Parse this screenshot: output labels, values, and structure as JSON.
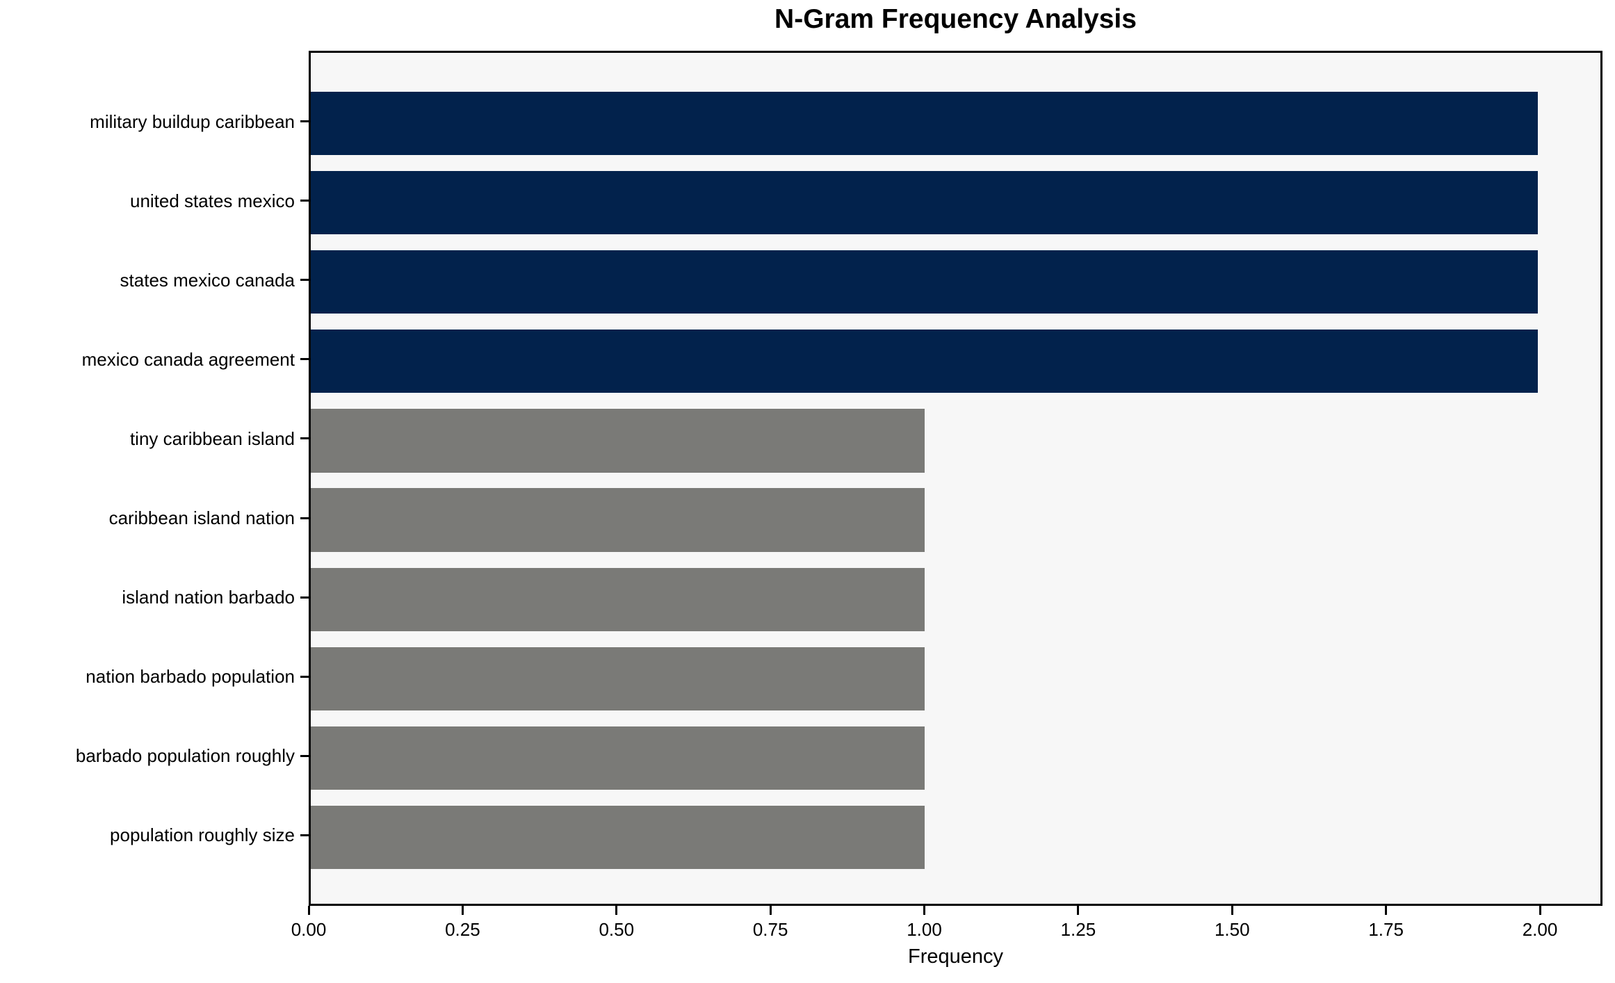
{
  "chart_data": {
    "type": "bar",
    "orientation": "horizontal",
    "title": "N-Gram Frequency Analysis",
    "xlabel": "Frequency",
    "ylabel": "",
    "categories": [
      "military buildup caribbean",
      "united states mexico",
      "states mexico canada",
      "mexico canada agreement",
      "tiny caribbean island",
      "caribbean island nation",
      "island nation barbado",
      "nation barbado population",
      "barbado population roughly",
      "population roughly size"
    ],
    "values": [
      2,
      2,
      2,
      2,
      1,
      1,
      1,
      1,
      1,
      1
    ],
    "bar_colors": [
      "#02224c",
      "#02224c",
      "#02224c",
      "#02224c",
      "#7a7a77",
      "#7a7a77",
      "#7a7a77",
      "#7a7a77",
      "#7a7a77",
      "#7a7a77"
    ],
    "xlim": [
      0,
      2.1016
    ],
    "xticks": [
      0,
      0.25,
      0.5,
      0.75,
      1.0,
      1.25,
      1.5,
      1.75,
      2.0
    ],
    "xtick_labels": [
      "0.00",
      "0.25",
      "0.50",
      "0.75",
      "1.00",
      "1.25",
      "1.50",
      "1.75",
      "2.00"
    ],
    "grid": false,
    "legend": "none",
    "plot_background": "#f7f7f7",
    "figure_background": "#ffffff",
    "colors": {
      "high_frequency_bar": "#02224c",
      "low_frequency_bar": "#7a7a77",
      "axis": "#000000",
      "text": "#000000"
    }
  }
}
